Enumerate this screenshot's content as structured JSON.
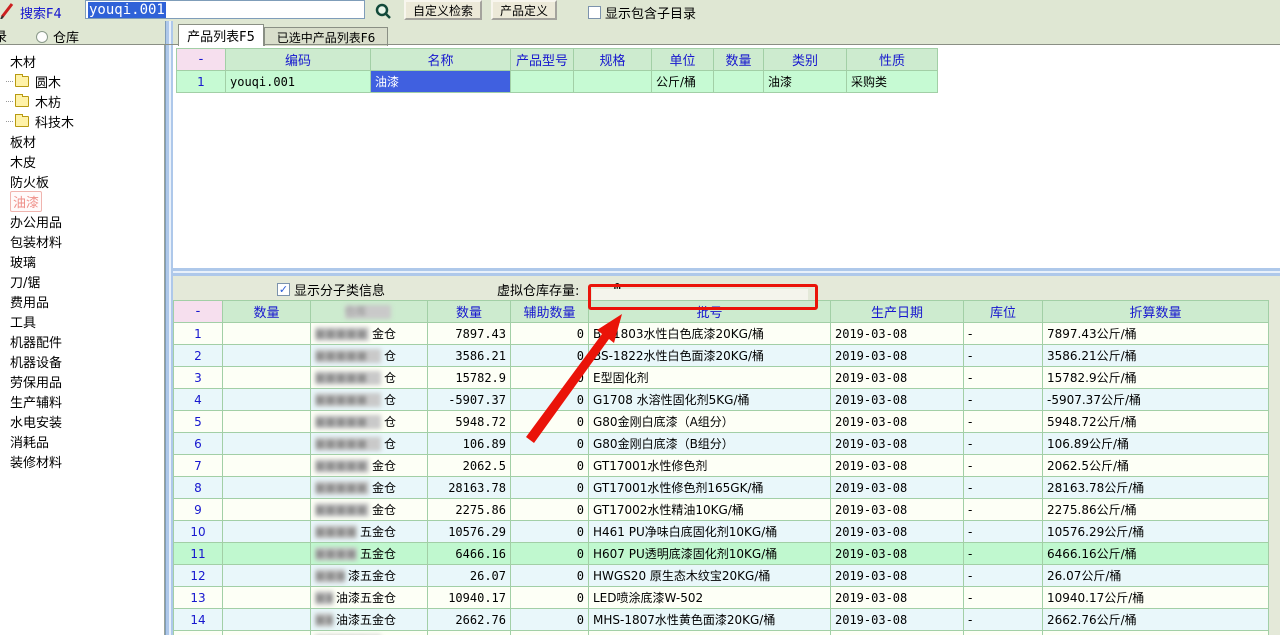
{
  "toolbar": {
    "search_label": "搜索F4",
    "search_value": "youqi.001",
    "btn_custom_search": "自定义检索",
    "btn_product_define": "产品定义",
    "chk_include_subdir": "显示包含子目录"
  },
  "nav_row": {
    "partial_label": "录",
    "radio_warehouse": "仓库"
  },
  "tabs": [
    {
      "label": "产品列表F5",
      "active": true
    },
    {
      "label": "已选中产品列表F6",
      "active": false
    }
  ],
  "sidebar": {
    "items": [
      {
        "label": "木材",
        "type": "plain"
      },
      {
        "label": "圆木",
        "type": "folder"
      },
      {
        "label": "木枋",
        "type": "folder"
      },
      {
        "label": "科技木",
        "type": "folder"
      },
      {
        "label": "板材",
        "type": "plain"
      },
      {
        "label": "木皮",
        "type": "plain"
      },
      {
        "label": "防火板",
        "type": "plain"
      },
      {
        "label": "油漆",
        "type": "plain",
        "selected": true
      },
      {
        "label": "办公用品",
        "type": "plain"
      },
      {
        "label": "包装材料",
        "type": "plain"
      },
      {
        "label": "玻璃",
        "type": "plain"
      },
      {
        "label": "刀/锯",
        "type": "plain"
      },
      {
        "label": "费用品",
        "type": "plain"
      },
      {
        "label": "工具",
        "type": "plain"
      },
      {
        "label": "机器配件",
        "type": "plain"
      },
      {
        "label": "机器设备",
        "type": "plain"
      },
      {
        "label": "劳保用品",
        "type": "plain"
      },
      {
        "label": "生产辅料",
        "type": "plain"
      },
      {
        "label": "水电安装",
        "type": "plain"
      },
      {
        "label": "消耗品",
        "type": "plain"
      },
      {
        "label": "装修材料",
        "type": "plain"
      }
    ]
  },
  "product_table": {
    "columns": [
      "-",
      "编码",
      "名称",
      "产品型号",
      "规格",
      "单位",
      "数量",
      "类别",
      "性质"
    ],
    "rows": [
      {
        "no": "1",
        "code": "youqi.001",
        "name": "油漆",
        "model": "",
        "spec": "",
        "unit": "公斤/桶",
        "qty": "",
        "category": "油漆",
        "nature": "采购类"
      }
    ]
  },
  "bottom_panel": {
    "chk_show_subclass": "显示分子类信息",
    "virtual_stock_label": "虚拟仓库存量:",
    "virtual_stock_value": "0",
    "columns": [
      "-",
      "数量",
      "仓库",
      "数量",
      "辅助数量",
      "批号",
      "生产日期",
      "库位",
      "折算数量"
    ],
    "rows": [
      {
        "no": "1",
        "qty1": "",
        "wh": "金仓",
        "qty": "7897.43",
        "aux": "0",
        "batch": "BS-1803水性白色底漆20KG/桶",
        "date": "2019-03-08",
        "loc": "-",
        "conv": "7897.43公斤/桶"
      },
      {
        "no": "2",
        "qty1": "",
        "wh": "仓",
        "qty": "3586.21",
        "aux": "0",
        "batch": "BS-1822水性白色面漆20KG/桶",
        "date": "2019-03-08",
        "loc": "-",
        "conv": "3586.21公斤/桶"
      },
      {
        "no": "3",
        "qty1": "",
        "wh": "仓",
        "qty": "15782.9",
        "aux": "0",
        "batch": "E型固化剂",
        "date": "2019-03-08",
        "loc": "-",
        "conv": "15782.9公斤/桶"
      },
      {
        "no": "4",
        "qty1": "",
        "wh": "仓",
        "qty": "-5907.37",
        "aux": "0",
        "batch": "G1708 水溶性固化剂5KG/桶",
        "date": "2019-03-08",
        "loc": "-",
        "conv": "-5907.37公斤/桶"
      },
      {
        "no": "5",
        "qty1": "",
        "wh": "仓",
        "qty": "5948.72",
        "aux": "0",
        "batch": "G80金刚白底漆（A组分）",
        "date": "2019-03-08",
        "loc": "-",
        "conv": "5948.72公斤/桶"
      },
      {
        "no": "6",
        "qty1": "",
        "wh": "仓",
        "qty": "106.89",
        "aux": "0",
        "batch": "G80金刚白底漆（B组分）",
        "date": "2019-03-08",
        "loc": "-",
        "conv": "106.89公斤/桶"
      },
      {
        "no": "7",
        "qty1": "",
        "wh": "金仓",
        "qty": "2062.5",
        "aux": "0",
        "batch": "GT17001水性修色剂",
        "date": "2019-03-08",
        "loc": "-",
        "conv": "2062.5公斤/桶"
      },
      {
        "no": "8",
        "qty1": "",
        "wh": "金仓",
        "qty": "28163.78",
        "aux": "0",
        "batch": "GT17001水性修色剂165GK/桶",
        "date": "2019-03-08",
        "loc": "-",
        "conv": "28163.78公斤/桶"
      },
      {
        "no": "9",
        "qty1": "",
        "wh": "金仓",
        "qty": "2275.86",
        "aux": "0",
        "batch": "GT17002水性精油10KG/桶",
        "date": "2019-03-08",
        "loc": "-",
        "conv": "2275.86公斤/桶"
      },
      {
        "no": "10",
        "qty1": "",
        "wh": "五金仓",
        "qty": "10576.29",
        "aux": "0",
        "batch": "H461 PU净味白底固化剂10KG/桶",
        "date": "2019-03-08",
        "loc": "-",
        "conv": "10576.29公斤/桶"
      },
      {
        "no": "11",
        "qty1": "",
        "wh": "五金仓",
        "qty": "6466.16",
        "aux": "0",
        "batch": "H607 PU透明底漆固化剂10KG/桶",
        "date": "2019-03-08",
        "loc": "-",
        "conv": "6466.16公斤/桶",
        "selected": true
      },
      {
        "no": "12",
        "qty1": "",
        "wh": "漆五金仓",
        "qty": "26.07",
        "aux": "0",
        "batch": "HWGS20 原生态木纹宝20KG/桶",
        "date": "2019-03-08",
        "loc": "-",
        "conv": "26.07公斤/桶"
      },
      {
        "no": "13",
        "qty1": "",
        "wh": "油漆五金仓",
        "qty": "10940.17",
        "aux": "0",
        "batch": "LED喷涂底漆W-502",
        "date": "2019-03-08",
        "loc": "-",
        "conv": "10940.17公斤/桶"
      },
      {
        "no": "14",
        "qty1": "",
        "wh": "油漆五金仓",
        "qty": "2662.76",
        "aux": "0",
        "batch": "MHS-1807水性黄色面漆20KG/桶",
        "date": "2019-03-08",
        "loc": "-",
        "conv": "2662.76公斤/桶"
      },
      {
        "no": "",
        "qty1": "",
        "wh": "仓",
        "qty": "",
        "aux": "",
        "batch": "",
        "date": "",
        "loc": "",
        "conv": ""
      }
    ]
  },
  "colors": {
    "annotation_red": "#ea1309",
    "selection_blue": "#4060e0",
    "selected_row_green": "#c0f8cf",
    "header_text_blue": "#1717cf",
    "panel_green": "#e4e9d9"
  }
}
